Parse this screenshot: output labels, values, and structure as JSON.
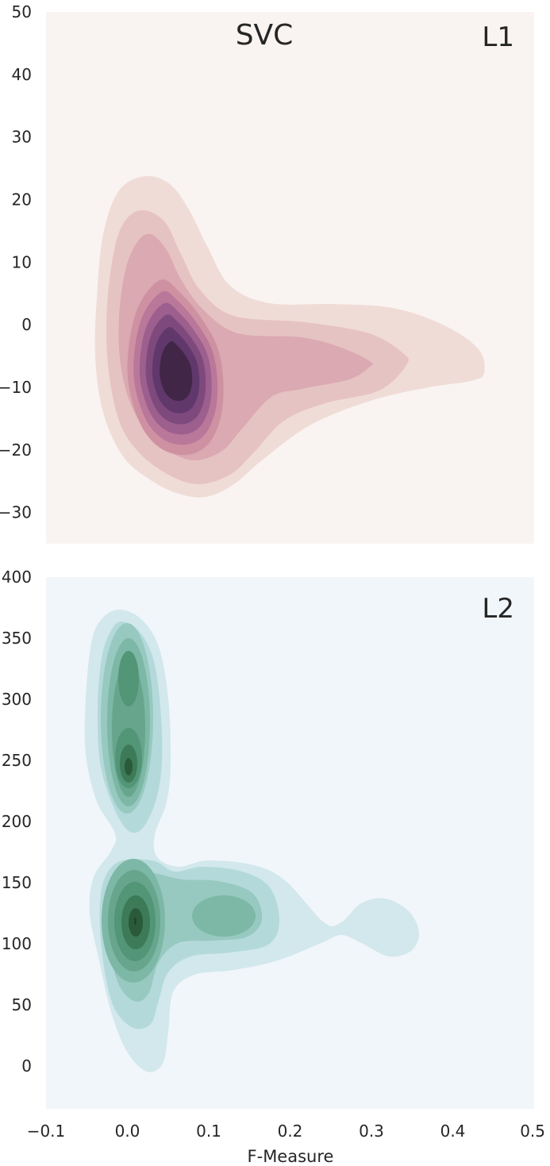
{
  "chart_data": [
    {
      "type": "kde_contour",
      "title": "SVC",
      "panel_label": "L1",
      "xlim": [
        -0.1,
        0.5
      ],
      "ylim": [
        -35,
        50
      ],
      "yticks": [
        "50",
        "40",
        "30",
        "20",
        "10",
        "0",
        "−10",
        "−20",
        "−30"
      ],
      "ytick_values": [
        50,
        40,
        30,
        20,
        10,
        0,
        -10,
        -20,
        -30
      ],
      "grid": false,
      "colors": [
        "#F0DCD7",
        "#E6C3C3",
        "#DAA9B1",
        "#CE91A2",
        "#B9789A",
        "#9C5F8E",
        "#7E4A7E",
        "#61386B",
        "#412647"
      ],
      "background": "#F9F4F2",
      "density_peaks": [
        {
          "x": 0.06,
          "y": -7,
          "level": 9
        },
        {
          "x": 0.2,
          "y": -5,
          "level": 3
        },
        {
          "x": 0.0,
          "y": 10,
          "level": 2
        }
      ]
    },
    {
      "type": "kde_contour",
      "panel_label": "L2",
      "xlim": [
        -0.1,
        0.5
      ],
      "ylim": [
        -35,
        400
      ],
      "yticks": [
        "400",
        "350",
        "300",
        "250",
        "200",
        "150",
        "100",
        "50",
        "0"
      ],
      "ytick_values": [
        400,
        350,
        300,
        250,
        200,
        150,
        100,
        50,
        0
      ],
      "xticks": [
        "−0.1",
        "0.0",
        "0.1",
        "0.2",
        "0.3",
        "0.4",
        "0.5"
      ],
      "xtick_values": [
        -0.1,
        0.0,
        0.1,
        0.2,
        0.3,
        0.4,
        0.5
      ],
      "xlabel": "F-Measure",
      "grid": false,
      "colors": [
        "#D2E8EC",
        "#B4D9DA",
        "#97C9C0",
        "#7DB7A5",
        "#67A68D",
        "#529577",
        "#3C7A58",
        "#2A5A3A"
      ],
      "background": "#F1F6FA",
      "density_peaks": [
        {
          "x": 0.01,
          "y": 118,
          "level": 8
        },
        {
          "x": 0.0,
          "y": 248,
          "level": 7
        },
        {
          "x": 0.0,
          "y": 310,
          "level": 5
        },
        {
          "x": 0.12,
          "y": 122,
          "level": 4
        },
        {
          "x": 0.32,
          "y": 112,
          "level": 1
        }
      ]
    }
  ]
}
